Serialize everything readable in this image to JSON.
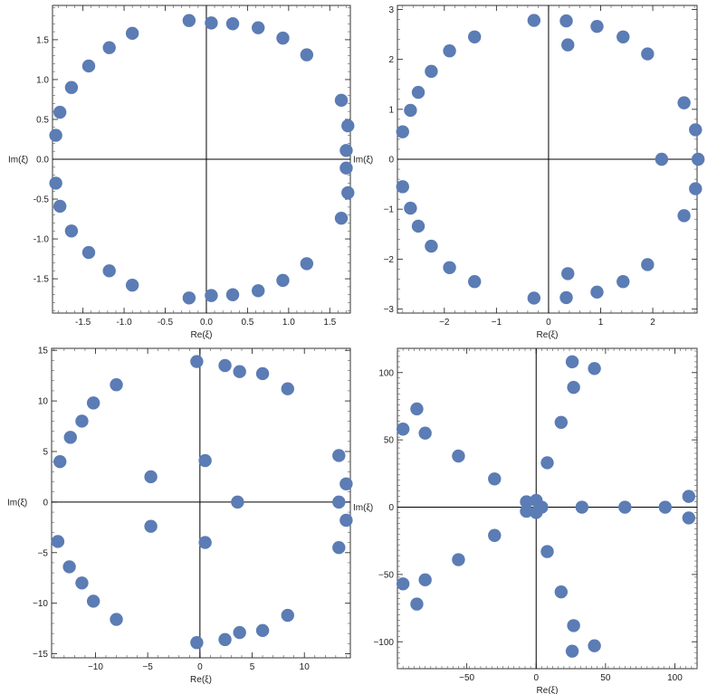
{
  "chart_data": [
    {
      "type": "scatter",
      "title": "",
      "xlabel": "Re(ξ)",
      "ylabel": "Im(ξ)",
      "xlim": [
        -1.87,
        1.75
      ],
      "ylim": [
        -1.93,
        1.93
      ],
      "xticks": [
        -1.5,
        -1.0,
        -0.5,
        0.0,
        0.5,
        1.0,
        1.5
      ],
      "xtick_labels": [
        "-1.5",
        "-1.0",
        "-0.5",
        "0.0",
        "0.5",
        "1.0",
        "1.5"
      ],
      "yticks": [
        -1.5,
        -1.0,
        -0.5,
        0.0,
        0.5,
        1.0,
        1.5
      ],
      "ytick_labels": [
        "-1.5",
        "-1.0",
        "-0.5",
        "0.0",
        "0.5",
        "1.0",
        "1.5"
      ],
      "grid": false,
      "color": "#5b7cb4",
      "points": [
        [
          -0.21,
          1.74
        ],
        [
          0.06,
          1.71
        ],
        [
          0.32,
          1.7
        ],
        [
          0.63,
          1.65
        ],
        [
          0.93,
          1.52
        ],
        [
          1.22,
          1.31
        ],
        [
          1.64,
          0.74
        ],
        [
          1.72,
          0.42
        ],
        [
          1.7,
          0.11
        ],
        [
          1.7,
          -0.11
        ],
        [
          1.72,
          -0.42
        ],
        [
          1.64,
          -0.74
        ],
        [
          1.22,
          -1.31
        ],
        [
          0.93,
          -1.52
        ],
        [
          0.63,
          -1.65
        ],
        [
          0.32,
          -1.7
        ],
        [
          0.06,
          -1.71
        ],
        [
          -0.21,
          -1.74
        ],
        [
          -0.9,
          -1.58
        ],
        [
          -1.18,
          -1.4
        ],
        [
          -1.43,
          -1.17
        ],
        [
          -1.64,
          -0.9
        ],
        [
          -1.78,
          -0.59
        ],
        [
          -1.83,
          -0.3
        ],
        [
          -1.83,
          0.3
        ],
        [
          -1.78,
          0.59
        ],
        [
          -1.64,
          0.9
        ],
        [
          -1.43,
          1.17
        ],
        [
          -1.18,
          1.4
        ],
        [
          -0.9,
          1.58
        ]
      ]
    },
    {
      "type": "scatter",
      "title": "",
      "xlabel": "Re(ξ)",
      "ylabel": "Im(ξ)",
      "xlim": [
        -2.9,
        2.85
      ],
      "ylim": [
        -3.08,
        3.08
      ],
      "xticks": [
        -2,
        -1,
        0,
        1,
        2
      ],
      "xtick_labels": [
        "−2",
        "−1",
        "0",
        "1",
        "2"
      ],
      "yticks": [
        -3,
        -2,
        -1,
        0,
        1,
        2,
        3
      ],
      "ytick_labels": [
        "−3",
        "−2",
        "−1",
        "0",
        "1",
        "2",
        "3"
      ],
      "grid": false,
      "color": "#5b7cb4",
      "points": [
        [
          -0.28,
          2.78
        ],
        [
          0.34,
          2.77
        ],
        [
          0.93,
          2.66
        ],
        [
          1.43,
          2.45
        ],
        [
          1.9,
          2.11
        ],
        [
          0.37,
          2.29
        ],
        [
          2.6,
          1.13
        ],
        [
          2.82,
          0.59
        ],
        [
          2.87,
          0.0
        ],
        [
          2.17,
          0.0
        ],
        [
          2.82,
          -0.59
        ],
        [
          2.6,
          -1.13
        ],
        [
          1.9,
          -2.11
        ],
        [
          1.43,
          -2.45
        ],
        [
          0.93,
          -2.66
        ],
        [
          0.34,
          -2.77
        ],
        [
          0.37,
          -2.29
        ],
        [
          -0.28,
          -2.78
        ],
        [
          -1.42,
          -2.45
        ],
        [
          -1.9,
          -2.17
        ],
        [
          -2.25,
          -1.74
        ],
        [
          -2.5,
          -1.34
        ],
        [
          -2.65,
          -0.98
        ],
        [
          -2.8,
          -0.55
        ],
        [
          -2.8,
          0.55
        ],
        [
          -2.65,
          0.98
        ],
        [
          -2.5,
          1.34
        ],
        [
          -2.25,
          1.76
        ],
        [
          -1.9,
          2.17
        ],
        [
          -1.42,
          2.45
        ]
      ]
    },
    {
      "type": "scatter",
      "title": "",
      "xlabel": "Re(ξ)",
      "ylabel": "Im(ξ)",
      "xlim": [
        -14.2,
        14.4
      ],
      "ylim": [
        -15.4,
        15.2
      ],
      "xticks": [
        -10,
        -5,
        0,
        5,
        10
      ],
      "xtick_labels": [
        "−10",
        "−5",
        "0",
        "5",
        "10"
      ],
      "yticks": [
        -15,
        -10,
        -5,
        0,
        5,
        10,
        15
      ],
      "ytick_labels": [
        "−15",
        "−10",
        "−5",
        "0",
        "5",
        "10",
        "15"
      ],
      "grid": false,
      "color": "#5b7cb4",
      "points": [
        [
          -0.3,
          13.9
        ],
        [
          2.4,
          13.5
        ],
        [
          3.8,
          12.9
        ],
        [
          6.0,
          12.7
        ],
        [
          8.4,
          11.2
        ],
        [
          0.5,
          4.1
        ],
        [
          13.3,
          4.6
        ],
        [
          14.0,
          1.8
        ],
        [
          13.3,
          0.0
        ],
        [
          3.6,
          0.0
        ],
        [
          14.0,
          -1.8
        ],
        [
          13.3,
          -4.5
        ],
        [
          8.4,
          -11.2
        ],
        [
          6.0,
          -12.7
        ],
        [
          3.8,
          -12.9
        ],
        [
          2.4,
          -13.6
        ],
        [
          0.5,
          -4.0
        ],
        [
          -0.3,
          -13.9
        ],
        [
          -4.7,
          -2.4
        ],
        [
          -8.0,
          -11.6
        ],
        [
          -10.2,
          -9.8
        ],
        [
          -11.3,
          -8.0
        ],
        [
          -12.5,
          -6.4
        ],
        [
          -13.6,
          -3.9
        ],
        [
          -13.4,
          4.0
        ],
        [
          -12.4,
          6.4
        ],
        [
          -11.3,
          8.0
        ],
        [
          -10.2,
          9.8
        ],
        [
          -8.0,
          11.6
        ],
        [
          -4.7,
          2.5
        ]
      ]
    },
    {
      "type": "scatter",
      "title": "",
      "xlabel": "Re(ξ)",
      "ylabel": "Im(ξ)",
      "xlim": [
        -100,
        116
      ],
      "ylim": [
        -120,
        118
      ],
      "xticks": [
        -50,
        0,
        50,
        100
      ],
      "xtick_labels": [
        "−50",
        "0",
        "50",
        "100"
      ],
      "yticks": [
        -100,
        -50,
        0,
        50,
        100
      ],
      "ytick_labels": [
        "−100",
        "−50",
        "0",
        "50",
        "100"
      ],
      "grid": false,
      "color": "#5b7cb4",
      "points": [
        [
          26,
          108
        ],
        [
          42,
          103
        ],
        [
          27,
          89
        ],
        [
          18,
          63
        ],
        [
          8,
          33
        ],
        [
          -30,
          21
        ],
        [
          -56,
          38
        ],
        [
          -80,
          55
        ],
        [
          -86,
          73
        ],
        [
          -96,
          58
        ],
        [
          -7,
          4
        ],
        [
          -7,
          -3
        ],
        [
          0,
          5
        ],
        [
          0,
          -4
        ],
        [
          4,
          0
        ],
        [
          33,
          0
        ],
        [
          64,
          0
        ],
        [
          93,
          0
        ],
        [
          110,
          8
        ],
        [
          110,
          -8
        ],
        [
          -30,
          -21
        ],
        [
          -56,
          -39
        ],
        [
          -80,
          -54
        ],
        [
          -86,
          -72
        ],
        [
          -96,
          -57
        ],
        [
          8,
          -33
        ],
        [
          18,
          -63
        ],
        [
          27,
          -88
        ],
        [
          26,
          -107
        ],
        [
          42,
          -103
        ]
      ]
    }
  ]
}
